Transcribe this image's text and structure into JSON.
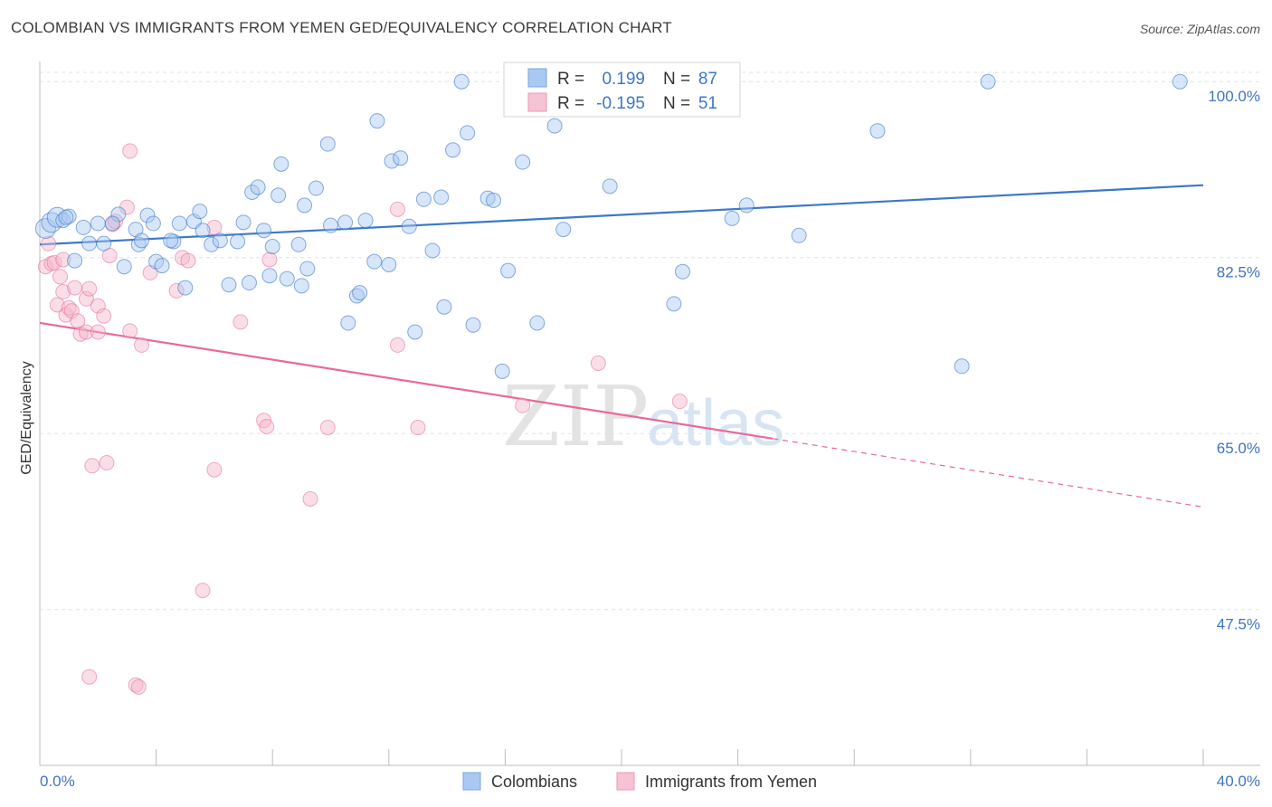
{
  "title": "COLOMBIAN VS IMMIGRANTS FROM YEMEN GED/EQUIVALENCY CORRELATION CHART",
  "source": "Source: ZipAtlas.com",
  "watermark": {
    "zip": "ZIP",
    "atlas": "atlas"
  },
  "colors": {
    "blue": "#3b78c8",
    "blue_fill": "#a9c8f2",
    "pink": "#e8699a",
    "pink_fill": "#f5b6ca",
    "axis_text": "#3f74c2",
    "grid": "#dde3ea"
  },
  "legend_top": {
    "rows": [
      {
        "r_label": "R =",
        "r_value": "0.199",
        "n_label": "N =",
        "n_value": "87"
      },
      {
        "r_label": "R =",
        "r_value": "-0.195",
        "n_label": "N =",
        "n_value": "51"
      }
    ]
  },
  "chart_data": {
    "type": "scatter",
    "title": "COLOMBIAN VS IMMIGRANTS FROM YEMEN GED/EQUIVALENCY CORRELATION CHART",
    "ylabel": "GED/Equivalency",
    "xlabel": "",
    "x_tick_labels": [
      "0.0%",
      "40.0%"
    ],
    "y_tick_labels": [
      "100.0%",
      "82.5%",
      "65.0%",
      "47.5%"
    ],
    "xlim": [
      0,
      40
    ],
    "ylim": [
      32,
      102
    ],
    "y_ticks": [
      100,
      82.5,
      65,
      47.5
    ],
    "grid": true,
    "legend_position": "bottom-center",
    "series": [
      {
        "name": "Colombians",
        "color": "#3b78c8",
        "trend": {
          "x": [
            0,
            40
          ],
          "y": [
            83.8,
            89.7
          ]
        },
        "points": [
          [
            0.2,
            85.4
          ],
          [
            0.4,
            86
          ],
          [
            0.6,
            86.5
          ],
          [
            0.8,
            86.2
          ],
          [
            1.0,
            86.6
          ],
          [
            1.2,
            82.2
          ],
          [
            1.5,
            85.5
          ],
          [
            1.7,
            83.9
          ],
          [
            2.0,
            85.9
          ],
          [
            2.2,
            83.9
          ],
          [
            2.7,
            86.8
          ],
          [
            2.9,
            81.6
          ],
          [
            3.3,
            85.3
          ],
          [
            3.4,
            83.8
          ],
          [
            3.7,
            86.7
          ],
          [
            3.9,
            85.9
          ],
          [
            4.0,
            82.1
          ],
          [
            4.2,
            81.7
          ],
          [
            4.6,
            84.1
          ],
          [
            4.8,
            85.9
          ],
          [
            5.0,
            79.5
          ],
          [
            5.3,
            86.1
          ],
          [
            5.5,
            87.1
          ],
          [
            5.6,
            85.2
          ],
          [
            5.9,
            83.8
          ],
          [
            6.2,
            84.2
          ],
          [
            6.5,
            79.8
          ],
          [
            7.0,
            86
          ],
          [
            7.3,
            89
          ],
          [
            7.5,
            89.5
          ],
          [
            7.7,
            85.2
          ],
          [
            7.9,
            80.7
          ],
          [
            8.0,
            83.6
          ],
          [
            8.2,
            88.7
          ],
          [
            8.3,
            91.8
          ],
          [
            8.5,
            80.4
          ],
          [
            9.0,
            79.7
          ],
          [
            9.1,
            87.7
          ],
          [
            9.2,
            81.4
          ],
          [
            9.5,
            89.4
          ],
          [
            9.9,
            93.8
          ],
          [
            10.0,
            85.7
          ],
          [
            10.6,
            76
          ],
          [
            10.9,
            78.7
          ],
          [
            11.0,
            79
          ],
          [
            11.5,
            82.1
          ],
          [
            11.6,
            96.1
          ],
          [
            12.1,
            92.1
          ],
          [
            12.4,
            92.4
          ],
          [
            12.7,
            85.6
          ],
          [
            12.9,
            75.1
          ],
          [
            13.2,
            88.3
          ],
          [
            13.5,
            83.2
          ],
          [
            13.8,
            88.5
          ],
          [
            13.9,
            77.6
          ],
          [
            14.2,
            93.2
          ],
          [
            14.7,
            94.9
          ],
          [
            14.9,
            75.8
          ],
          [
            15.4,
            88.4
          ],
          [
            15.6,
            88.2
          ],
          [
            15.9,
            71.2
          ],
          [
            16.1,
            81.2
          ],
          [
            16.6,
            92
          ],
          [
            17.1,
            76
          ],
          [
            17.7,
            95.6
          ],
          [
            18.0,
            85.3
          ],
          [
            19.6,
            89.6
          ],
          [
            21.8,
            77.9
          ],
          [
            22.1,
            81.1
          ],
          [
            23.8,
            86.4
          ],
          [
            24.3,
            87.7
          ],
          [
            26.1,
            84.7
          ],
          [
            28.8,
            95.1
          ],
          [
            31.7,
            71.7
          ],
          [
            32.6,
            100
          ],
          [
            39.2,
            100
          ],
          [
            14.5,
            100
          ],
          [
            11.2,
            86.2
          ],
          [
            6.8,
            84.1
          ],
          [
            4.5,
            84.2
          ],
          [
            2.5,
            85.9
          ],
          [
            3.5,
            84.2
          ],
          [
            10.5,
            86.0
          ],
          [
            12.0,
            81.8
          ],
          [
            8.9,
            83.8
          ],
          [
            7.2,
            80.0
          ],
          [
            0.9,
            86.5
          ]
        ]
      },
      {
        "name": "Immigrants from Yemen",
        "color": "#e8699a",
        "trend": {
          "x": [
            0,
            25.2
          ],
          "y": [
            76,
            64.5
          ]
        },
        "trend_dashed": {
          "x": [
            25.2,
            40
          ],
          "y": [
            64.5,
            57.7
          ]
        },
        "points": [
          [
            0.2,
            81.6
          ],
          [
            0.3,
            83.9
          ],
          [
            0.4,
            81.9
          ],
          [
            0.5,
            82
          ],
          [
            0.6,
            77.8
          ],
          [
            0.7,
            80.6
          ],
          [
            0.8,
            82.3
          ],
          [
            0.8,
            79.1
          ],
          [
            0.9,
            76.8
          ],
          [
            1.0,
            77.5
          ],
          [
            1.1,
            77.2
          ],
          [
            1.2,
            79.5
          ],
          [
            1.3,
            76.2
          ],
          [
            1.4,
            74.9
          ],
          [
            1.6,
            75.1
          ],
          [
            1.6,
            78.4
          ],
          [
            1.7,
            79.4
          ],
          [
            1.8,
            61.8
          ],
          [
            2.0,
            75.1
          ],
          [
            2.0,
            77.7
          ],
          [
            2.2,
            76.7
          ],
          [
            2.3,
            62.1
          ],
          [
            2.4,
            82.7
          ],
          [
            2.5,
            85.8
          ],
          [
            2.6,
            86.1
          ],
          [
            3.0,
            87.5
          ],
          [
            3.1,
            75.2
          ],
          [
            3.1,
            93.1
          ],
          [
            3.3,
            40
          ],
          [
            3.4,
            39.8
          ],
          [
            3.5,
            73.8
          ],
          [
            3.8,
            81
          ],
          [
            4.7,
            79.2
          ],
          [
            4.9,
            82.5
          ],
          [
            5.1,
            82.2
          ],
          [
            5.6,
            49.4
          ],
          [
            6.0,
            85.5
          ],
          [
            6.0,
            61.4
          ],
          [
            6.9,
            76.1
          ],
          [
            7.7,
            66.3
          ],
          [
            7.8,
            65.7
          ],
          [
            7.9,
            82.3
          ],
          [
            9.3,
            58.5
          ],
          [
            9.9,
            65.6
          ],
          [
            12.3,
            73.8
          ],
          [
            12.3,
            87.3
          ],
          [
            13.0,
            65.6
          ],
          [
            16.6,
            67.8
          ],
          [
            19.2,
            72
          ],
          [
            22.0,
            68.2
          ],
          [
            1.7,
            40.8
          ]
        ]
      }
    ]
  }
}
